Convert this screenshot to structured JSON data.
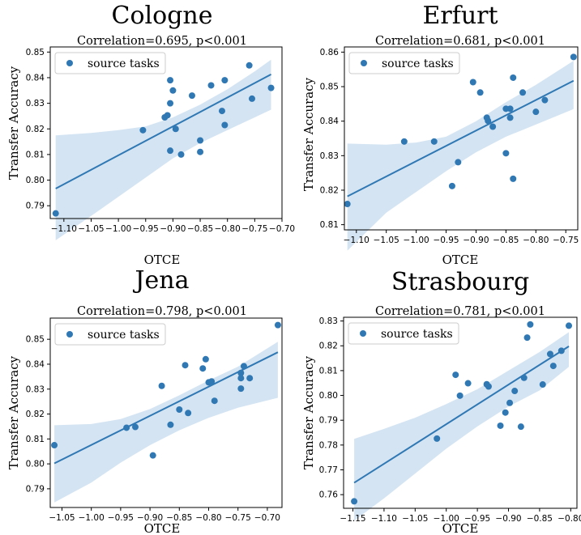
{
  "figure": {
    "colors": {
      "series": "#2f78b4",
      "band": "#cddff0",
      "frame": "#000000"
    }
  },
  "chart_data": [
    {
      "type": "scatter",
      "title": "Cologne",
      "subtitle": "Correlation=0.695, p<0.001",
      "xlabel": "OTCE",
      "ylabel": "Transfer Accuracy",
      "xlim": [
        -1.125,
        -0.7
      ],
      "ylim": [
        0.785,
        0.852
      ],
      "xticks": [
        -1.1,
        -1.05,
        -1.0,
        -0.95,
        -0.9,
        -0.85,
        -0.8,
        -0.75,
        -0.7
      ],
      "xtick_labels": [
        "−1.10",
        "−1.05",
        "−1.00",
        "−0.95",
        "−0.90",
        "−0.85",
        "−0.80",
        "−0.75",
        "−0.70"
      ],
      "yticks": [
        0.79,
        0.8,
        0.81,
        0.82,
        0.83,
        0.84,
        0.85
      ],
      "ytick_labels": [
        "0.79",
        "0.80",
        "0.81",
        "0.82",
        "0.83",
        "0.84",
        "0.85"
      ],
      "legend": {
        "label": "source tasks",
        "placement": "top-left"
      },
      "series": [
        {
          "name": "source tasks",
          "points": [
            [
              -1.115,
              0.787
            ],
            [
              -0.955,
              0.8195
            ],
            [
              -0.915,
              0.8245
            ],
            [
              -0.91,
              0.8253
            ],
            [
              -0.905,
              0.839
            ],
            [
              -0.905,
              0.83
            ],
            [
              -0.905,
              0.8115
            ],
            [
              -0.9,
              0.835
            ],
            [
              -0.895,
              0.82
            ],
            [
              -0.885,
              0.81
            ],
            [
              -0.865,
              0.833
            ],
            [
              -0.85,
              0.8155
            ],
            [
              -0.85,
              0.811
            ],
            [
              -0.83,
              0.837
            ],
            [
              -0.81,
              0.827
            ],
            [
              -0.805,
              0.8215
            ],
            [
              -0.805,
              0.839
            ],
            [
              -0.76,
              0.8448
            ],
            [
              -0.755,
              0.8318
            ],
            [
              -0.72,
              0.836
            ]
          ]
        }
      ],
      "fit": {
        "x": [
          -1.115,
          -0.72
        ],
        "y": [
          0.7967,
          0.8413
        ]
      },
      "band": {
        "x": [
          -1.115,
          -1.05,
          -1.0,
          -0.95,
          -0.9,
          -0.85,
          -0.8,
          -0.75,
          -0.72
        ],
        "upper": [
          0.8175,
          0.8184,
          0.8195,
          0.821,
          0.8245,
          0.8295,
          0.8355,
          0.8425,
          0.847
        ],
        "lower": [
          0.7765,
          0.786,
          0.7935,
          0.801,
          0.8085,
          0.8145,
          0.8195,
          0.8245,
          0.8275
        ]
      }
    },
    {
      "type": "scatter",
      "title": "Erfurt",
      "subtitle": "Correlation=0.681, p<0.001",
      "xlabel": "OTCE",
      "ylabel": "Transfer Accuracy",
      "xlim": [
        -1.12,
        -0.73
      ],
      "ylim": [
        0.8085,
        0.8615
      ],
      "xticks": [
        -1.1,
        -1.05,
        -1.0,
        -0.95,
        -0.9,
        -0.85,
        -0.8,
        -0.75
      ],
      "xtick_labels": [
        "−1.10",
        "−1.05",
        "−1.00",
        "−0.95",
        "−0.90",
        "−0.85",
        "−0.80",
        "−0.75"
      ],
      "yticks": [
        0.81,
        0.82,
        0.83,
        0.84,
        0.85,
        0.86
      ],
      "ytick_labels": [
        "0.81",
        "0.82",
        "0.83",
        "0.84",
        "0.85",
        "0.86"
      ],
      "legend": {
        "label": "source tasks",
        "placement": "top-left"
      },
      "series": [
        {
          "name": "source tasks",
          "points": [
            [
              -1.115,
              0.816
            ],
            [
              -1.02,
              0.8341
            ],
            [
              -0.97,
              0.8341
            ],
            [
              -0.94,
              0.8212
            ],
            [
              -0.93,
              0.8281
            ],
            [
              -0.905,
              0.8513
            ],
            [
              -0.893,
              0.8483
            ],
            [
              -0.882,
              0.841
            ],
            [
              -0.88,
              0.8401
            ],
            [
              -0.872,
              0.8384
            ],
            [
              -0.85,
              0.8436
            ],
            [
              -0.85,
              0.8307
            ],
            [
              -0.843,
              0.8436
            ],
            [
              -0.843,
              0.841
            ],
            [
              -0.838,
              0.8526
            ],
            [
              -0.838,
              0.8233
            ],
            [
              -0.822,
              0.8483
            ],
            [
              -0.8,
              0.8427
            ],
            [
              -0.785,
              0.8461
            ],
            [
              -0.737,
              0.8586
            ]
          ]
        }
      ],
      "fit": {
        "x": [
          -1.115,
          -0.737
        ],
        "y": [
          0.8182,
          0.8517
        ]
      },
      "band": {
        "x": [
          -1.115,
          -1.05,
          -1.0,
          -0.95,
          -0.9,
          -0.85,
          -0.8,
          -0.737
        ],
        "upper": [
          0.8335,
          0.8332,
          0.8338,
          0.8355,
          0.84,
          0.8455,
          0.8505,
          0.8575
        ],
        "lower": [
          0.8025,
          0.8135,
          0.8195,
          0.8255,
          0.831,
          0.8355,
          0.839,
          0.8435
        ]
      }
    },
    {
      "type": "scatter",
      "title": "Jena",
      "subtitle": "Correlation=0.798, p<0.001",
      "xlabel": "OTCE",
      "ylabel": "Transfer Accuracy",
      "xlim": [
        -1.07,
        -0.675
      ],
      "ylim": [
        0.7825,
        0.8585
      ],
      "xticks": [
        -1.05,
        -1.0,
        -0.95,
        -0.9,
        -0.85,
        -0.8,
        -0.75,
        -0.7
      ],
      "xtick_labels": [
        "−1.05",
        "−1.00",
        "−0.95",
        "−0.90",
        "−0.85",
        "−0.80",
        "−0.75",
        "−0.70"
      ],
      "yticks": [
        0.79,
        0.8,
        0.81,
        0.82,
        0.83,
        0.84,
        0.85
      ],
      "ytick_labels": [
        "0.79",
        "0.80",
        "0.81",
        "0.82",
        "0.83",
        "0.84",
        "0.85"
      ],
      "legend": {
        "label": "source tasks",
        "placement": "top-left"
      },
      "series": [
        {
          "name": "source tasks",
          "points": [
            [
              -1.063,
              0.8075
            ],
            [
              -0.94,
              0.8145
            ],
            [
              -0.925,
              0.8148
            ],
            [
              -0.895,
              0.8034
            ],
            [
              -0.88,
              0.8313
            ],
            [
              -0.865,
              0.8157
            ],
            [
              -0.85,
              0.8218
            ],
            [
              -0.84,
              0.8396
            ],
            [
              -0.835,
              0.8204
            ],
            [
              -0.81,
              0.8383
            ],
            [
              -0.805,
              0.842
            ],
            [
              -0.8,
              0.8327
            ],
            [
              -0.795,
              0.8331
            ],
            [
              -0.79,
              0.8253
            ],
            [
              -0.745,
              0.8365
            ],
            [
              -0.745,
              0.8344
            ],
            [
              -0.745,
              0.8302
            ],
            [
              -0.74,
              0.8392
            ],
            [
              -0.73,
              0.8344
            ],
            [
              -0.682,
              0.8557
            ]
          ]
        }
      ],
      "fit": {
        "x": [
          -1.063,
          -0.682
        ],
        "y": [
          0.8002,
          0.8448
        ]
      },
      "band": {
        "x": [
          -1.063,
          -1.0,
          -0.95,
          -0.9,
          -0.85,
          -0.8,
          -0.75,
          -0.682
        ],
        "upper": [
          0.8155,
          0.816,
          0.818,
          0.822,
          0.8275,
          0.8335,
          0.839,
          0.849
        ],
        "lower": [
          0.7845,
          0.7925,
          0.8005,
          0.8075,
          0.8135,
          0.8185,
          0.8225,
          0.8265
        ]
      }
    },
    {
      "type": "scatter",
      "title": "Strasbourg",
      "subtitle": "Correlation=0.781, p<0.001",
      "xlabel": "OTCE",
      "ylabel": "Transfer Accuracy",
      "xlim": [
        -1.165,
        -0.79
      ],
      "ylim": [
        0.7545,
        0.8315
      ],
      "xticks": [
        -1.15,
        -1.1,
        -1.05,
        -1.0,
        -0.95,
        -0.9,
        -0.85,
        -0.8
      ],
      "xtick_labels": [
        "−1.15",
        "−1.10",
        "−1.05",
        "−1.00",
        "−0.95",
        "−0.90",
        "−0.85",
        "−0.80"
      ],
      "yticks": [
        0.76,
        0.77,
        0.78,
        0.79,
        0.8,
        0.81,
        0.82,
        0.83
      ],
      "ytick_labels": [
        "0.76",
        "0.77",
        "0.78",
        "0.79",
        "0.80",
        "0.81",
        "0.82",
        "0.83"
      ],
      "legend": {
        "label": "source tasks",
        "placement": "top-left"
      },
      "series": [
        {
          "name": "source tasks",
          "points": [
            [
              -1.148,
              0.7573
            ],
            [
              -1.015,
              0.7826
            ],
            [
              -0.985,
              0.8083
            ],
            [
              -0.978,
              0.7999
            ],
            [
              -0.965,
              0.8049
            ],
            [
              -0.935,
              0.8045
            ],
            [
              -0.932,
              0.8036
            ],
            [
              -0.913,
              0.7878
            ],
            [
              -0.905,
              0.7931
            ],
            [
              -0.898,
              0.797
            ],
            [
              -0.89,
              0.8018
            ],
            [
              -0.88,
              0.7874
            ],
            [
              -0.875,
              0.8071
            ],
            [
              -0.87,
              0.8233
            ],
            [
              -0.865,
              0.8286
            ],
            [
              -0.845,
              0.8044
            ],
            [
              -0.833,
              0.8167
            ],
            [
              -0.828,
              0.8119
            ],
            [
              -0.815,
              0.818
            ],
            [
              -0.803,
              0.8281
            ]
          ]
        }
      ],
      "fit": {
        "x": [
          -1.148,
          -0.803
        ],
        "y": [
          0.7648,
          0.8198
        ]
      },
      "band": {
        "x": [
          -1.148,
          -1.1,
          -1.05,
          -1.0,
          -0.95,
          -0.9,
          -0.85,
          -0.803
        ],
        "upper": [
          0.7825,
          0.7865,
          0.791,
          0.7965,
          0.8025,
          0.81,
          0.8175,
          0.8255
        ],
        "lower": [
          0.7495,
          0.7585,
          0.7685,
          0.7785,
          0.7875,
          0.7955,
          0.802,
          0.8115
        ]
      }
    }
  ]
}
